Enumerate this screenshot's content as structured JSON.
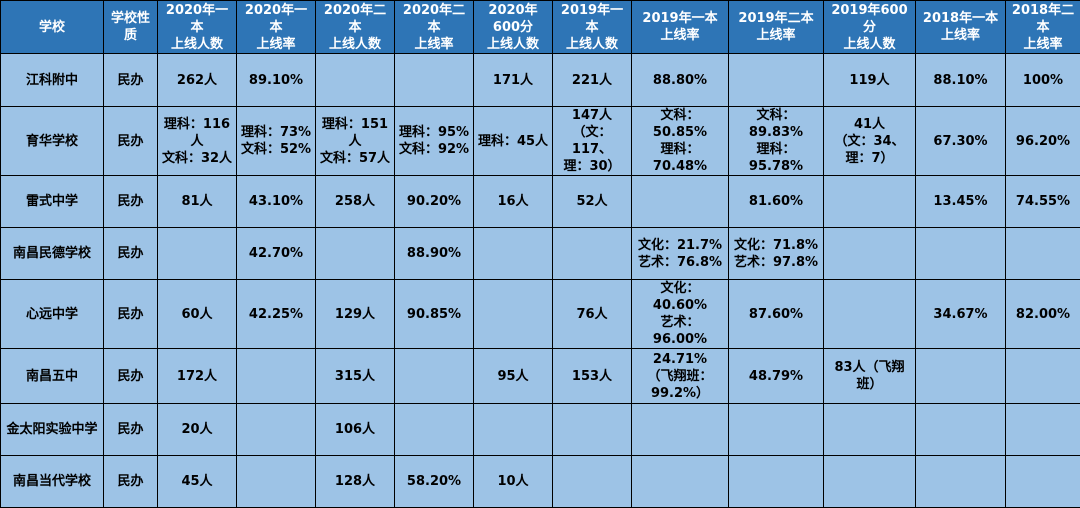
{
  "headers": [
    "学校",
    "学校性质",
    "2020年一本\n上线人数",
    "2020年一本\n上线率",
    "2020年二本\n上线人数",
    "2020年二本\n上线率",
    "2020年600分\n上线人数",
    "2019年一本\n上线人数",
    "2019年一本\n上线率",
    "2019年二本\n上线率",
    "2019年600分\n上线人数",
    "2018年一本\n上线率",
    "2018年二本\n上线率"
  ],
  "rows": [
    [
      "江科附中",
      "民办",
      "262人",
      "89.10%",
      "",
      "",
      "171人",
      "221人",
      "88.80%",
      "",
      "119人",
      "88.10%",
      "100%"
    ],
    [
      "育华学校",
      "民办",
      "理科：116人\n文科：32人",
      "理科：73%\n文科：52%",
      "理科：151人\n文科：57人",
      "理科：95%\n文科：92%",
      "理科：45人",
      "147人\n（文：117、\n理：30）",
      "文科：50.85%\n理科：70.48%",
      "文科：89.83%\n理科：95.78%",
      "41人\n（文：34、\n理：7）",
      "67.30%",
      "96.20%"
    ],
    [
      "雷式中学",
      "民办",
      "81人",
      "43.10%",
      "258人",
      "90.20%",
      "16人",
      "52人",
      "",
      "81.60%",
      "",
      "13.45%",
      "74.55%"
    ],
    [
      "南昌民德学校",
      "民办",
      "",
      "42.70%",
      "",
      "88.90%",
      "",
      "",
      "文化：21.7%\n艺术：76.8%",
      "文化：71.8%\n艺术：97.8%",
      "",
      "",
      ""
    ],
    [
      "心远中学",
      "民办",
      "60人",
      "42.25%",
      "129人",
      "90.85%",
      "",
      "76人",
      "文化：40.60%\n艺术：96.00%",
      "87.60%",
      "",
      "34.67%",
      "82.00%"
    ],
    [
      "南昌五中",
      "民办",
      "172人",
      "",
      "315人",
      "",
      "95人",
      "153人",
      "24.71%\n（飞翔班：\n99.2%）",
      "48.79%",
      "83人（飞翔班）",
      "",
      ""
    ],
    [
      "金太阳实验中学",
      "民办",
      "20人",
      "",
      "106人",
      "",
      "",
      "",
      "",
      "",
      "",
      "",
      ""
    ],
    [
      "南昌当代学校",
      "民办",
      "45人",
      "",
      "128人",
      "58.20%",
      "10人",
      "",
      "",
      "",
      "",
      "",
      ""
    ]
  ]
}
